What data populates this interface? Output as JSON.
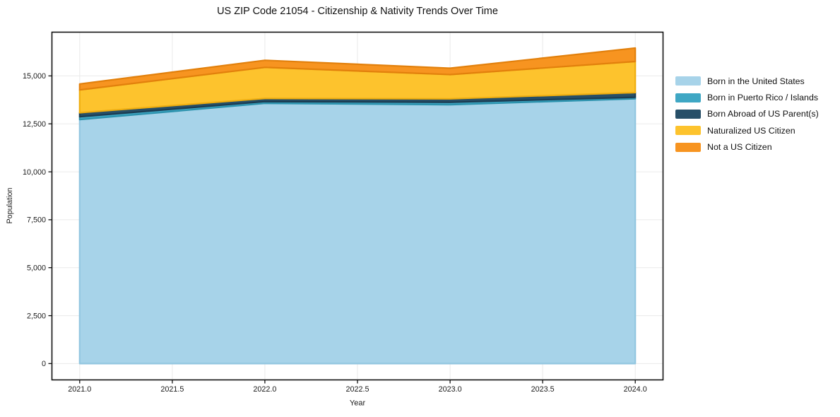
{
  "page_title": "US ZIP Code 21054 - Citizenship & Nativity Trends Over Time",
  "chart_data": {
    "type": "area",
    "stacked": true,
    "title": "US ZIP Code 21054 - Citizenship & Nativity Trends Over Time",
    "xlabel": "Year",
    "ylabel": "Population",
    "x": [
      2021,
      2022,
      2023,
      2024
    ],
    "series": [
      {
        "name": "Born in the United States",
        "color": "#a7d3e9",
        "edge": "#92c6e0",
        "values": [
          12720,
          13570,
          13500,
          13810
        ]
      },
      {
        "name": "Born in Puerto Rico / Islands",
        "color": "#3fa7c4",
        "edge": "#2d93ae",
        "values": [
          150,
          90,
          125,
          75
        ]
      },
      {
        "name": "Born Abroad of US Parent(s)",
        "color": "#274f68",
        "edge": "#1b3c52",
        "values": [
          210,
          165,
          180,
          245
        ]
      },
      {
        "name": "Naturalized US Citizen",
        "color": "#fdc32d",
        "edge": "#efae10",
        "values": [
          1190,
          1620,
          1265,
          1620
        ]
      },
      {
        "name": "Not a US Citizen",
        "color": "#f79420",
        "edge": "#e2800c",
        "values": [
          310,
          370,
          330,
          700
        ]
      }
    ],
    "totals": [
      14580,
      15815,
      15400,
      16450
    ],
    "xticks": [
      2021.0,
      2021.5,
      2022.0,
      2022.5,
      2023.0,
      2023.5,
      2024.0
    ],
    "x_tick_labels": [
      "2021.0",
      "2021.5",
      "2022.0",
      "2022.5",
      "2023.0",
      "2023.5",
      "2024.0"
    ],
    "yticks": [
      0,
      2500,
      5000,
      7500,
      10000,
      12500,
      15000
    ],
    "y_tick_labels": [
      "0",
      "2,500",
      "5,000",
      "7,500",
      "10,000",
      "12,500",
      "15,000"
    ],
    "xlim": [
      2020.85,
      2024.15
    ],
    "ylim": [
      -850,
      17280
    ],
    "grid": true,
    "legend_position": "right-outside",
    "colors": {
      "grid": "#eaeaea",
      "spine": "#111111",
      "tick_text": "#1a1a1a",
      "background": "#ffffff"
    }
  }
}
